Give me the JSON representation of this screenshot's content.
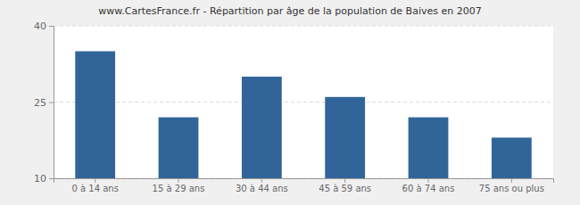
{
  "chart_data": {
    "type": "bar",
    "title": "www.CartesFrance.fr - Répartition par âge de la population de Baives en 2007",
    "categories": [
      "0 à 14 ans",
      "15 à 29 ans",
      "30 à 44 ans",
      "45 à 59 ans",
      "60 à 74 ans",
      "75 ans ou plus"
    ],
    "values": [
      35,
      22,
      30,
      26,
      22,
      18
    ],
    "color": "#31659a",
    "ylim": [
      10,
      40
    ],
    "yticks": [
      10,
      25,
      40
    ],
    "grid": true
  }
}
